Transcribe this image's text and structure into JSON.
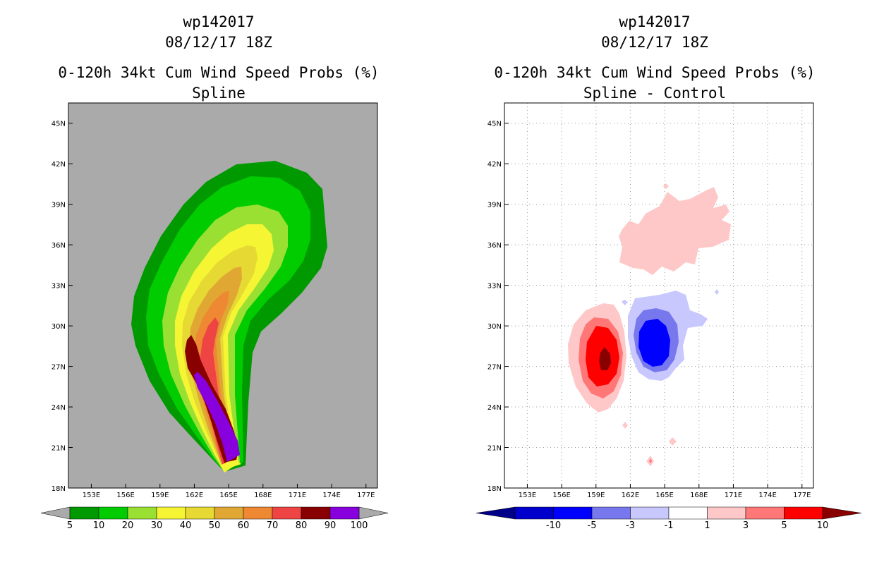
{
  "chart_data": [
    {
      "type": "heatmap",
      "storm": "wp142017",
      "datetime": "08/12/17 18Z",
      "title": "0-120h 34kt Cum Wind Speed Probs (%)",
      "subtitle": "Spline",
      "background_color": "#aaaaaa",
      "grid": false,
      "x_ticks": [
        "153E",
        "156E",
        "159E",
        "162E",
        "165E",
        "168E",
        "171E",
        "174E",
        "177E"
      ],
      "y_ticks": [
        "18N",
        "21N",
        "24N",
        "27N",
        "30N",
        "33N",
        "36N",
        "39N",
        "42N",
        "45N"
      ],
      "xlim_deg_e": [
        151,
        178
      ],
      "ylim_deg_n": [
        18,
        46.5
      ],
      "colorbar": {
        "labels": [
          "5",
          "10",
          "20",
          "30",
          "40",
          "50",
          "60",
          "70",
          "80",
          "90",
          "100"
        ],
        "colors": [
          "#009900",
          "#00cc00",
          "#99e033",
          "#f5f533",
          "#e6d933",
          "#e0a833",
          "#ee8833",
          "#ee4444",
          "#880000",
          "#8800dd"
        ],
        "extend_color": "#aaaaaa"
      },
      "contour_levels": [
        5,
        10,
        20,
        30,
        40,
        50,
        60,
        70,
        80,
        90
      ],
      "peak_value": 100,
      "track_origin": {
        "lon": 164.5,
        "lat": 19.2
      }
    },
    {
      "type": "heatmap",
      "storm": "wp142017",
      "datetime": "08/12/17 18Z",
      "title": "0-120h 34kt Cum Wind Speed Probs (%)",
      "subtitle": "Spline - Control",
      "background_color": "#ffffff",
      "grid": true,
      "x_ticks": [
        "153E",
        "156E",
        "159E",
        "162E",
        "165E",
        "168E",
        "171E",
        "174E",
        "177E"
      ],
      "y_ticks": [
        "18N",
        "21N",
        "24N",
        "27N",
        "30N",
        "33N",
        "36N",
        "39N",
        "42N",
        "45N"
      ],
      "xlim_deg_e": [
        151,
        178
      ],
      "ylim_deg_n": [
        18,
        46.5
      ],
      "colorbar": {
        "labels": [
          "-10",
          "-5",
          "-3",
          "-1",
          "1",
          "3",
          "5",
          "10"
        ],
        "colors": [
          "#0000cc",
          "#0000ff",
          "#7777ee",
          "#c8c8ff",
          "#ffffff",
          "#ffc8c8",
          "#ff7777",
          "#ff0000"
        ],
        "low_extend_color": "#000088",
        "high_extend_color": "#880000"
      },
      "features": [
        {
          "kind": "positive",
          "center": {
            "lon": 159.3,
            "lat": 27.5
          },
          "peak_level": 10
        },
        {
          "kind": "negative",
          "center": {
            "lon": 164.0,
            "lat": 28.5
          },
          "peak_level": -10
        },
        {
          "kind": "positive",
          "center": {
            "lon": 166.0,
            "lat": 37.0
          },
          "peak_level": 1
        }
      ]
    }
  ]
}
